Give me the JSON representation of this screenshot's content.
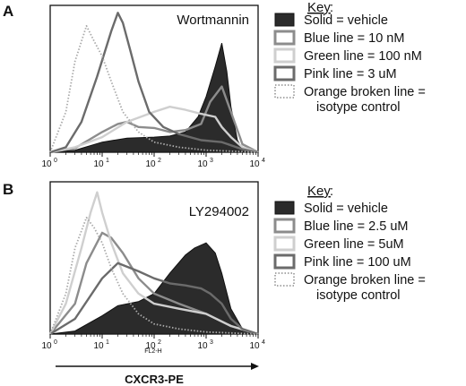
{
  "chart_data": [
    {
      "type": "area",
      "panel": "A",
      "title": "Wortmannin",
      "xscale": "log",
      "xlim": [
        1,
        10000
      ],
      "x_ticks": [
        "0",
        "1",
        "2",
        "3",
        "4"
      ],
      "key_title": "Key",
      "legend_placement": "right",
      "series": [
        {
          "name": "Solid = vehicle",
          "style": "filled-dark",
          "color": "#2b2b2b",
          "x": [
            1,
            3,
            10,
            30,
            100,
            200,
            400,
            700,
            1000,
            1500,
            2000,
            2500,
            3000,
            4000,
            5000,
            10000
          ],
          "values": [
            0,
            2,
            10,
            14,
            15,
            16,
            20,
            35,
            55,
            85,
            108,
            80,
            45,
            12,
            3,
            0
          ]
        },
        {
          "name": "Blue line = 10 nM",
          "style": "line",
          "color": "#8c8c8c",
          "x": [
            1,
            3,
            10,
            20,
            30,
            50,
            100,
            200,
            400,
            800,
            1200,
            2000,
            3000,
            5000,
            10000
          ],
          "values": [
            0,
            4,
            20,
            28,
            30,
            25,
            24,
            20,
            22,
            28,
            50,
            65,
            40,
            8,
            0
          ]
        },
        {
          "name": "Green line = 100 nM",
          "style": "line",
          "color": "#cfcfcf",
          "x": [
            1,
            3,
            10,
            30,
            100,
            200,
            400,
            800,
            1500,
            2000,
            3000,
            5000,
            10000
          ],
          "values": [
            0,
            5,
            15,
            30,
            40,
            45,
            42,
            38,
            35,
            25,
            15,
            5,
            0
          ]
        },
        {
          "name": "Pink line = 3 uM",
          "style": "line",
          "color": "#6b6b6b",
          "x": [
            1,
            2,
            4,
            8,
            15,
            20,
            25,
            35,
            50,
            80,
            150,
            300,
            800,
            2000,
            5000,
            10000
          ],
          "values": [
            0,
            5,
            30,
            75,
            120,
            138,
            128,
            100,
            70,
            40,
            25,
            18,
            12,
            10,
            3,
            0
          ]
        },
        {
          "name": "Orange broken line = isotype control",
          "style": "dotted",
          "color": "#aaaaaa",
          "x": [
            1,
            2,
            3,
            5,
            7,
            10,
            15,
            25,
            50,
            100,
            300,
            1000,
            10000
          ],
          "values": [
            0,
            40,
            90,
            125,
            110,
            95,
            70,
            40,
            20,
            10,
            5,
            2,
            0
          ]
        }
      ],
      "legend_lines": [
        "Solid = vehicle",
        "Blue line = 10 nM",
        "Green line = 100 nM",
        "Pink line = 3 uM",
        "Orange broken line =",
        "isotype control"
      ]
    },
    {
      "type": "area",
      "panel": "B",
      "title": "LY294002",
      "xscale": "log",
      "xlim": [
        1,
        10000
      ],
      "x_ticks": [
        "0",
        "1",
        "2",
        "3",
        "4"
      ],
      "x_channel_label": "FL2-H",
      "key_title": "Key",
      "legend_placement": "right",
      "series": [
        {
          "name": "Solid = vehicle",
          "style": "filled-dark",
          "color": "#2b2b2b",
          "x": [
            1,
            3,
            10,
            20,
            50,
            100,
            200,
            400,
            600,
            1000,
            1500,
            2000,
            3000,
            5000,
            10000
          ],
          "values": [
            0,
            3,
            18,
            28,
            32,
            40,
            60,
            78,
            85,
            90,
            80,
            60,
            25,
            5,
            0
          ]
        },
        {
          "name": "Blue line = 2.5 uM",
          "style": "line",
          "color": "#8c8c8c",
          "x": [
            1,
            3,
            5,
            10,
            15,
            25,
            50,
            100,
            300,
            1000,
            3000,
            10000
          ],
          "values": [
            0,
            30,
            70,
            100,
            95,
            80,
            55,
            40,
            30,
            20,
            8,
            0
          ]
        },
        {
          "name": "Green line = 5uM",
          "style": "line",
          "color": "#cfcfcf",
          "x": [
            1,
            2,
            4,
            6,
            8,
            10,
            15,
            25,
            50,
            100,
            300,
            1000,
            3000,
            10000
          ],
          "values": [
            0,
            30,
            85,
            120,
            140,
            120,
            90,
            60,
            40,
            30,
            25,
            20,
            8,
            0
          ]
        },
        {
          "name": "Pink line = 100 uM",
          "style": "line",
          "color": "#6b6b6b",
          "x": [
            1,
            3,
            10,
            20,
            50,
            100,
            200,
            400,
            800,
            1200,
            2000,
            3000,
            5000,
            10000
          ],
          "values": [
            0,
            15,
            55,
            70,
            62,
            55,
            50,
            48,
            45,
            40,
            30,
            15,
            5,
            0
          ]
        },
        {
          "name": "Orange broken line = isotype control",
          "style": "dotted",
          "color": "#aaaaaa",
          "x": [
            1,
            2,
            3,
            5,
            7,
            10,
            15,
            25,
            50,
            100,
            300,
            1000,
            10000
          ],
          "values": [
            0,
            40,
            85,
            115,
            105,
            90,
            65,
            40,
            20,
            10,
            5,
            2,
            0
          ]
        }
      ],
      "legend_lines": [
        "Solid = vehicle",
        "Blue line = 2.5 uM",
        "Green line = 5uM",
        "Pink line = 100 uM",
        "Orange broken line =",
        "isotype control"
      ]
    }
  ],
  "x_axis_title": "CXCR3-PE"
}
